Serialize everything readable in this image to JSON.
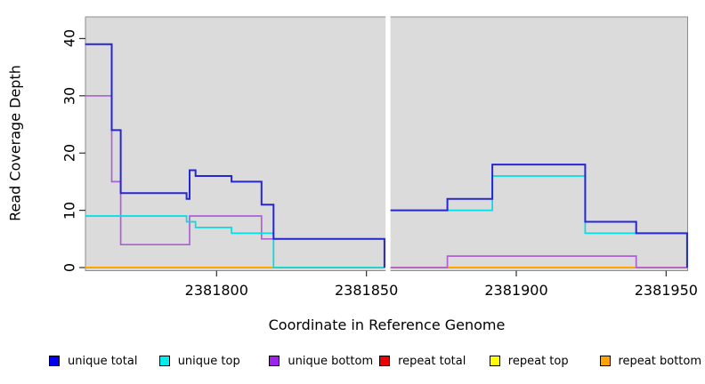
{
  "figure": {
    "background": "#ffffff",
    "panel_background": "#dbdbdb",
    "panel_border": "#8c8c8c",
    "tick_color": "#2f2f2f"
  },
  "chart_data": {
    "type": "line",
    "style": "step",
    "title": "",
    "xlabel": "Coordinate in Reference Genome",
    "ylabel": "Read Coverage Depth",
    "xlim": [
      2381756,
      2381957
    ],
    "ylim": [
      0,
      40
    ],
    "grid": "off",
    "legend_position": "bottom",
    "x_ticks": [
      2381800,
      2381850,
      2381900,
      2381950
    ],
    "x_tick_labels": [
      "2381800",
      "2381850",
      "2381900",
      "2381950"
    ],
    "y_ticks": [
      0,
      10,
      20,
      30,
      40
    ],
    "y_tick_labels": [
      "0",
      "10",
      "20",
      "30",
      "40"
    ],
    "gap_band": {
      "from": 2381856.4,
      "to": 2381858,
      "color": "#ffffff"
    },
    "series": [
      {
        "name": "repeat total",
        "color": "#e02020",
        "width": 1.7,
        "segments": [
          [
            [
              2381756,
              0
            ],
            [
              2381856,
              0
            ]
          ],
          [
            [
              2381858,
              0
            ],
            [
              2381957,
              0
            ]
          ]
        ]
      },
      {
        "name": "repeat top",
        "color": "#ffff00",
        "width": 1.7,
        "segments": [
          [
            [
              2381756,
              0
            ],
            [
              2381856,
              0
            ]
          ],
          [
            [
              2381858,
              0
            ],
            [
              2381957,
              0
            ]
          ]
        ]
      },
      {
        "name": "repeat bottom",
        "color": "#ffa500",
        "width": 1.9,
        "segments": [
          [
            [
              2381756,
              0
            ],
            [
              2381856,
              0
            ]
          ],
          [
            [
              2381858,
              0
            ],
            [
              2381957,
              0
            ]
          ]
        ]
      },
      {
        "name": "unique bottom",
        "color": "#ad5fd6",
        "width": 1.7,
        "segments": [
          [
            [
              2381756,
              30
            ],
            [
              2381765,
              15
            ],
            [
              2381768,
              4
            ],
            [
              2381791,
              9
            ],
            [
              2381815,
              5
            ],
            [
              2381856,
              0
            ]
          ],
          [
            [
              2381858,
              0
            ],
            [
              2381877,
              2
            ],
            [
              2381940,
              0
            ],
            [
              2381957,
              0
            ]
          ]
        ]
      },
      {
        "name": "unique top",
        "color": "#00dde6",
        "width": 1.7,
        "segments": [
          [
            [
              2381756,
              9
            ],
            [
              2381790,
              8
            ],
            [
              2381793,
              7
            ],
            [
              2381805,
              6
            ],
            [
              2381819,
              0
            ],
            [
              2381856,
              0
            ]
          ],
          [
            [
              2381858,
              10
            ],
            [
              2381892,
              16
            ],
            [
              2381923,
              6
            ],
            [
              2381957,
              0
            ]
          ]
        ]
      },
      {
        "name": "unique total",
        "color": "#2626d4",
        "width": 2,
        "segments": [
          [
            [
              2381756,
              39
            ],
            [
              2381765,
              24
            ],
            [
              2381768,
              13
            ],
            [
              2381790,
              12
            ],
            [
              2381791,
              17
            ],
            [
              2381793,
              16
            ],
            [
              2381805,
              15
            ],
            [
              2381815,
              11
            ],
            [
              2381819,
              5
            ],
            [
              2381856,
              0
            ]
          ],
          [
            [
              2381858,
              10
            ],
            [
              2381877,
              12
            ],
            [
              2381892,
              18
            ],
            [
              2381923,
              8
            ],
            [
              2381940,
              6
            ],
            [
              2381957,
              0
            ]
          ]
        ]
      }
    ]
  },
  "legend": {
    "items": [
      {
        "label": "unique total",
        "color": "#0000ee"
      },
      {
        "label": "unique top",
        "color": "#00eeee"
      },
      {
        "label": "unique bottom",
        "color": "#a020f0"
      },
      {
        "label": "repeat total",
        "color": "#ee0000"
      },
      {
        "label": "repeat top",
        "color": "#ffff00"
      },
      {
        "label": "repeat bottom",
        "color": "#ffa500"
      }
    ]
  }
}
